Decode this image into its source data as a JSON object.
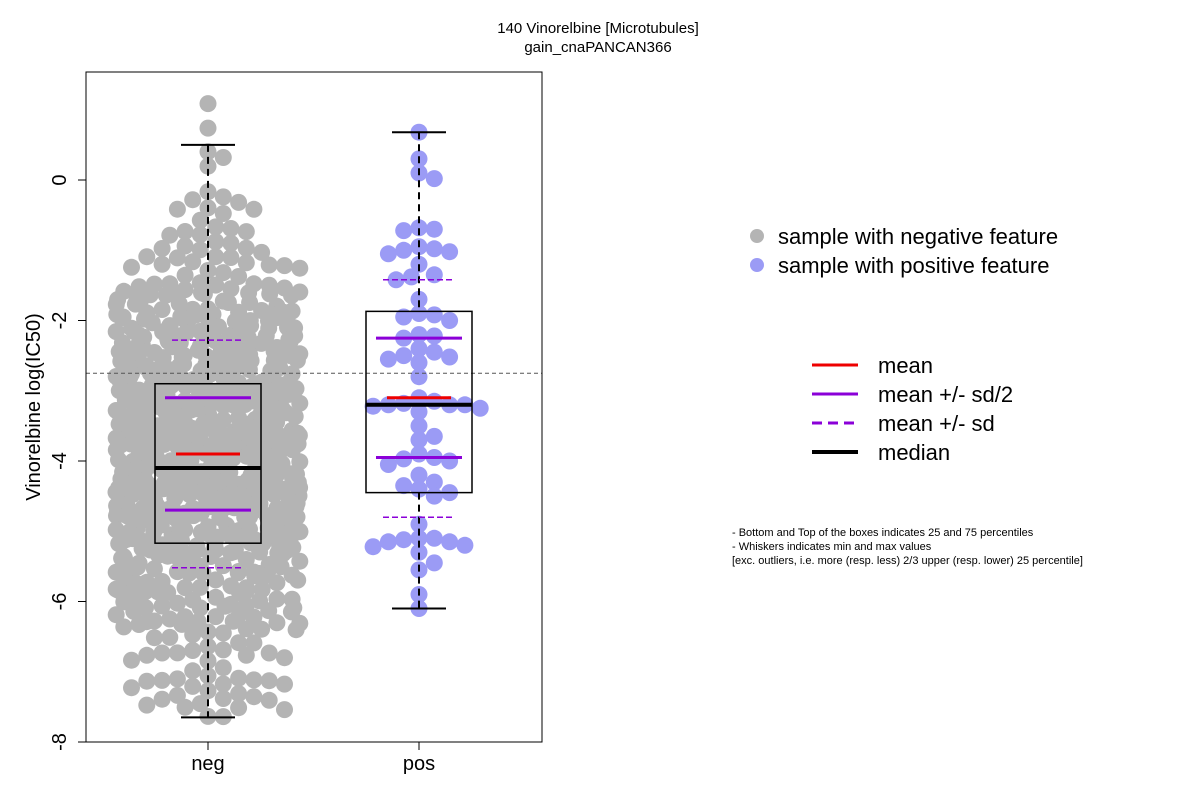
{
  "chart_data": {
    "type": "scatter",
    "title": "140 Vinorelbine [Microtubules]",
    "subtitle": "gain_cnaPANCAN366",
    "ylabel": "Vinorelbine log(IC50)",
    "xlabel": "",
    "categories": [
      "neg",
      "pos"
    ],
    "ylim": [
      -8,
      1.5
    ],
    "yticks": [
      0,
      -2,
      -4,
      -6,
      -8
    ],
    "reference_line_y": -2.75,
    "grid": false,
    "colors": {
      "neg": "#b4b4b4",
      "pos": "#9b9bf5",
      "mean": "#ee0000",
      "sd": "#8b00d8",
      "median": "#000000"
    },
    "groups": [
      {
        "name": "neg",
        "whisker_min": -7.65,
        "whisker_max": 0.5,
        "q1": -5.17,
        "q3": -2.9,
        "median": -4.1,
        "mean": -3.9,
        "mean_plus_sd_half": -3.1,
        "mean_minus_sd_half": -4.7,
        "mean_plus_sd": -2.28,
        "mean_minus_sd": -5.52,
        "n_points": 820
      },
      {
        "name": "pos",
        "whisker_min": -6.1,
        "whisker_max": 0.68,
        "q1": -4.45,
        "q3": -1.87,
        "median": -3.2,
        "mean": -3.1,
        "mean_plus_sd_half": -2.25,
        "mean_minus_sd_half": -3.95,
        "mean_plus_sd": -1.42,
        "mean_minus_sd": -4.8,
        "points": [
          0.68,
          0.3,
          0.1,
          0.02,
          -0.68,
          -0.7,
          -0.72,
          -0.95,
          -0.98,
          -1.0,
          -1.02,
          -1.05,
          -1.2,
          -1.35,
          -1.38,
          -1.42,
          -1.7,
          -1.9,
          -1.92,
          -1.95,
          -2.0,
          -2.2,
          -2.22,
          -2.25,
          -2.4,
          -2.45,
          -2.5,
          -2.52,
          -2.55,
          -2.6,
          -2.8,
          -3.1,
          -3.15,
          -3.18,
          -3.2,
          -3.2,
          -3.2,
          -3.22,
          -3.25,
          -3.3,
          -3.5,
          -3.65,
          -3.7,
          -3.9,
          -3.95,
          -3.97,
          -4.0,
          -4.05,
          -4.2,
          -4.3,
          -4.35,
          -4.4,
          -4.45,
          -4.5,
          -4.9,
          -5.1,
          -5.1,
          -5.12,
          -5.15,
          -5.15,
          -5.2,
          -5.22,
          -5.3,
          -5.45,
          -5.55,
          -5.9,
          -6.1
        ]
      }
    ]
  },
  "legend_points": [
    {
      "label": "sample with negative feature",
      "color": "#b4b4b4"
    },
    {
      "label": "sample with positive feature",
      "color": "#9b9bf5"
    }
  ],
  "legend_lines": [
    {
      "label": "mean",
      "color": "#ee0000",
      "style": "solid"
    },
    {
      "label": "mean +/- sd/2",
      "color": "#8b00d8",
      "style": "solid"
    },
    {
      "label": "mean +/- sd",
      "color": "#8b00d8",
      "style": "dashed"
    },
    {
      "label": "median",
      "color": "#000000",
      "style": "solid-thick"
    }
  ],
  "notes": [
    "- Bottom and Top of the boxes indicates 25 and 75 percentiles",
    "- Whiskers indicates min and max values",
    "[exc. outliers, i.e. more (resp. less) 2/3 upper (resp. lower) 25 percentile]"
  ]
}
